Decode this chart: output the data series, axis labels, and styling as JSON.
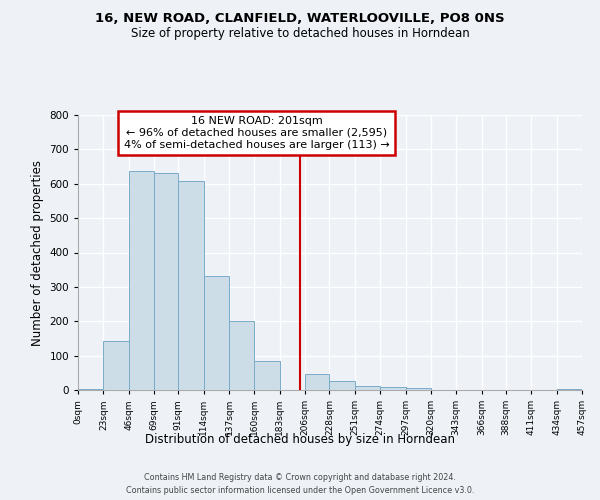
{
  "title_line1": "16, NEW ROAD, CLANFIELD, WATERLOOVILLE, PO8 0NS",
  "title_line2": "Size of property relative to detached houses in Horndean",
  "xlabel": "Distribution of detached houses by size in Horndean",
  "ylabel": "Number of detached properties",
  "bin_edges": [
    0,
    23,
    46,
    69,
    91,
    114,
    137,
    160,
    183,
    206,
    228,
    251,
    274,
    297,
    320,
    343,
    366,
    388,
    411,
    434,
    457
  ],
  "bar_heights": [
    3,
    143,
    636,
    631,
    609,
    331,
    201,
    85,
    0,
    46,
    27,
    12,
    10,
    5,
    1,
    0,
    0,
    0,
    0,
    4
  ],
  "bar_color": "#ccdde8",
  "bar_edge_color": "#7aabcc",
  "vline_x": 201,
  "vline_color": "#cc0000",
  "annotation_title": "16 NEW ROAD: 201sqm",
  "annotation_line1": "← 96% of detached houses are smaller (2,595)",
  "annotation_line2": "4% of semi-detached houses are larger (113) →",
  "annotation_box_edge": "#cc0000",
  "annotation_box_fill": "#ffffff",
  "ylim": [
    0,
    800
  ],
  "yticks": [
    0,
    100,
    200,
    300,
    400,
    500,
    600,
    700,
    800
  ],
  "xtick_labels": [
    "0sqm",
    "23sqm",
    "46sqm",
    "69sqm",
    "91sqm",
    "114sqm",
    "137sqm",
    "160sqm",
    "183sqm",
    "206sqm",
    "228sqm",
    "251sqm",
    "274sqm",
    "297sqm",
    "320sqm",
    "343sqm",
    "366sqm",
    "388sqm",
    "411sqm",
    "434sqm",
    "457sqm"
  ],
  "background_color": "#eef2f7",
  "grid_color": "#ffffff",
  "footer_line1": "Contains HM Land Registry data © Crown copyright and database right 2024.",
  "footer_line2": "Contains public sector information licensed under the Open Government Licence v3.0."
}
